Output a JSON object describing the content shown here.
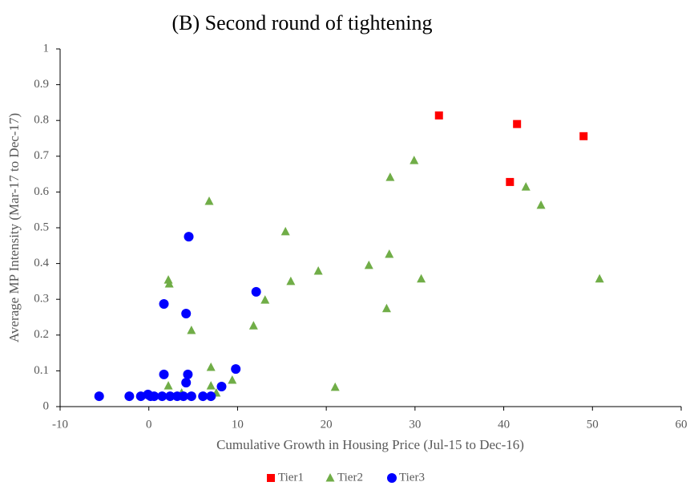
{
  "chart_data": {
    "type": "scatter",
    "title": "(B) Second round of tightening",
    "x_label": "Cumulative Growth in Housing Price (Jul-15 to Dec-16)",
    "y_label": "Average MP Intensity (Mar-17 to Dec-17)",
    "xlim": [
      -10,
      60
    ],
    "xticks": [
      -10,
      0,
      10,
      20,
      30,
      40,
      50,
      60
    ],
    "ylim": [
      0,
      1
    ],
    "yticks": [
      0,
      0.1,
      0.2,
      0.3,
      0.4,
      0.5,
      0.6,
      0.7,
      0.8,
      0.9,
      1
    ],
    "grid": false,
    "legend": "bottom",
    "series": [
      {
        "name": "Tier1",
        "color": "#ff0000",
        "marker": "square",
        "x": [
          32.7,
          41.5,
          49.0,
          40.7
        ],
        "values": [
          0.814,
          0.79,
          0.756,
          0.628
        ]
      },
      {
        "name": "Tier2",
        "color": "#70ad47",
        "marker": "triangle",
        "x": [
          6.8,
          29.9,
          27.2,
          42.5,
          44.2,
          15.4,
          24.8,
          27.1,
          19.1,
          16.0,
          30.7,
          50.8,
          2.2,
          2.3,
          13.1,
          26.8,
          4.8,
          11.8,
          7.0,
          9.4,
          21.0,
          2.2,
          7.0,
          7.6,
          3.7
        ],
        "values": [
          0.574,
          0.688,
          0.641,
          0.614,
          0.563,
          0.489,
          0.395,
          0.426,
          0.379,
          0.35,
          0.357,
          0.357,
          0.354,
          0.343,
          0.298,
          0.274,
          0.213,
          0.226,
          0.11,
          0.074,
          0.054,
          0.058,
          0.058,
          0.038,
          0.038
        ]
      },
      {
        "name": "Tier3",
        "color": "#0000ff",
        "marker": "circle",
        "x": [
          4.5,
          12.1,
          1.7,
          4.2,
          9.8,
          1.7,
          4.4,
          4.2,
          8.2,
          -5.6,
          -2.2,
          -0.9,
          -0.1,
          0.2,
          0.6,
          1.5,
          2.4,
          3.2,
          3.9,
          4.8,
          6.1,
          7.0
        ],
        "values": [
          0.475,
          0.321,
          0.287,
          0.26,
          0.105,
          0.09,
          0.09,
          0.067,
          0.056,
          0.029,
          0.029,
          0.029,
          0.034,
          0.029,
          0.029,
          0.029,
          0.029,
          0.029,
          0.029,
          0.029,
          0.029,
          0.029
        ]
      }
    ]
  }
}
